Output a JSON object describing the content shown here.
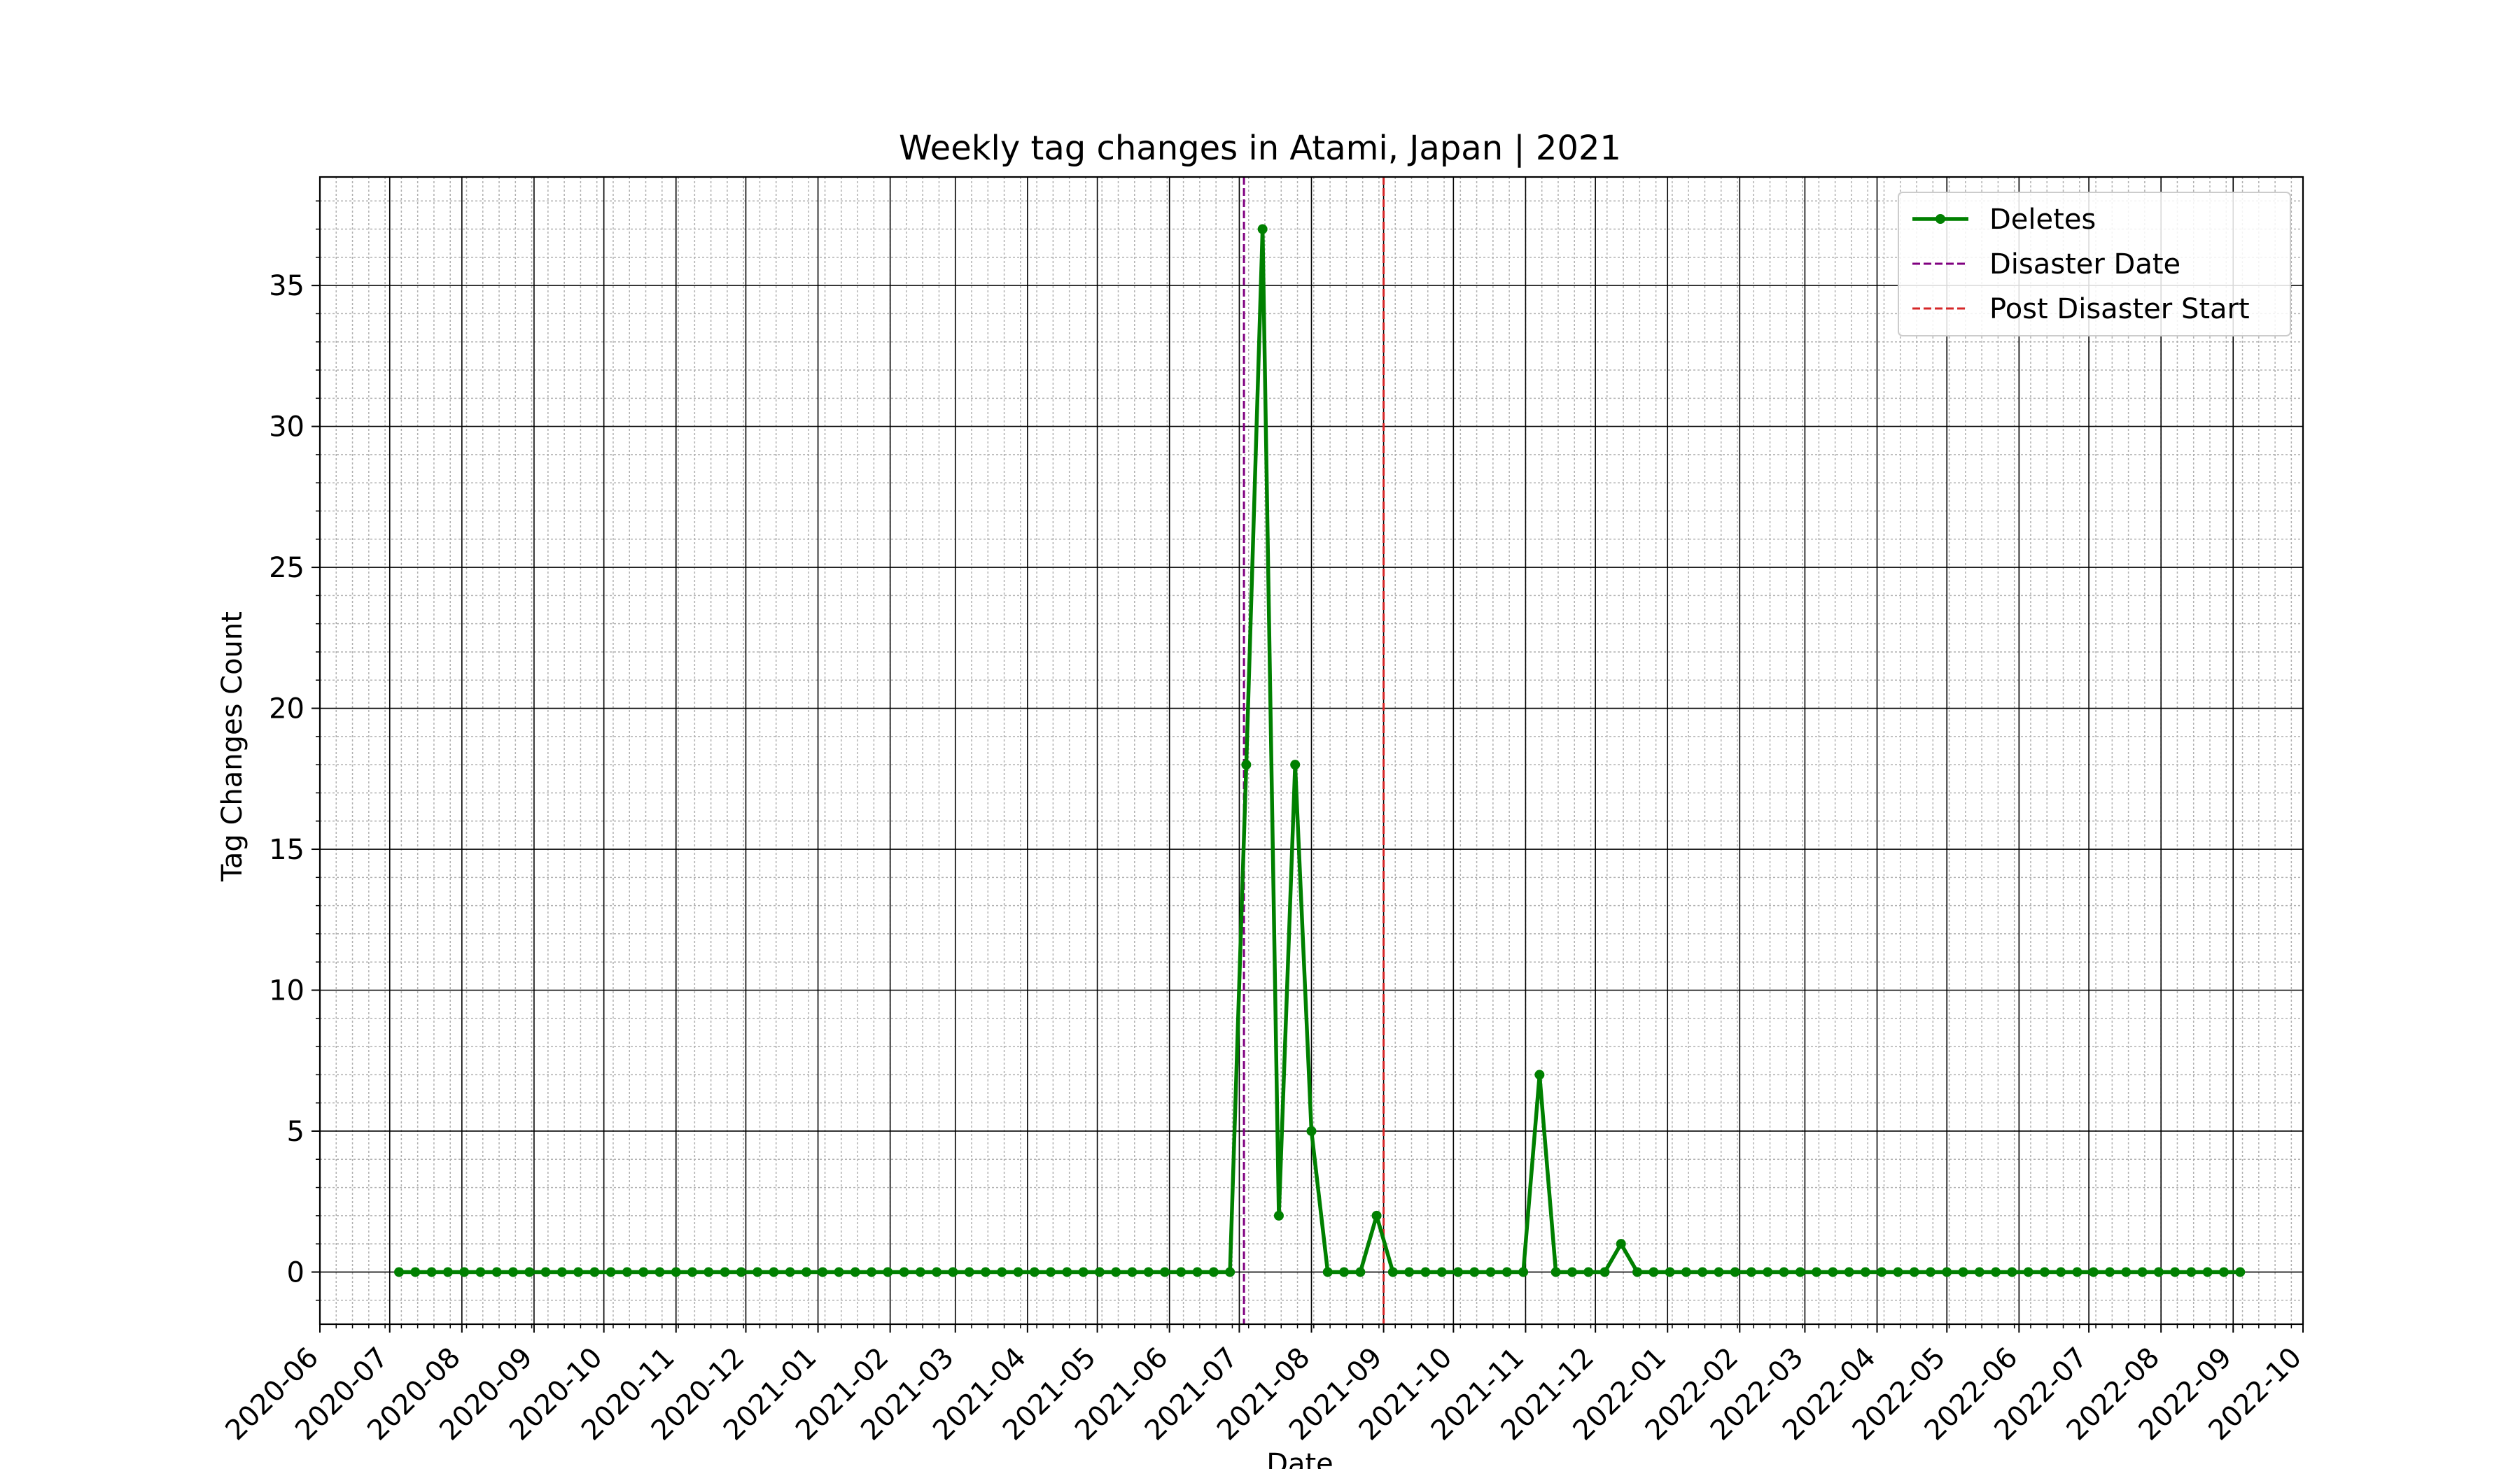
{
  "chart_data": {
    "type": "line",
    "title": "Weekly tag changes in Atami, Japan | 2021",
    "xlabel": "Date",
    "ylabel": "Tag Changes Count",
    "x_ticks": [
      "2020-06",
      "2020-07",
      "2020-08",
      "2020-09",
      "2020-10",
      "2020-11",
      "2020-12",
      "2021-01",
      "2021-02",
      "2021-03",
      "2021-04",
      "2021-05",
      "2021-06",
      "2021-07",
      "2021-08",
      "2021-09",
      "2021-10",
      "2021-11",
      "2021-12",
      "2022-01",
      "2022-02",
      "2022-03",
      "2022-04",
      "2022-05",
      "2022-06",
      "2022-07",
      "2022-08",
      "2022-09",
      "2022-10"
    ],
    "y_ticks": [
      0,
      5,
      10,
      15,
      20,
      25,
      30,
      35
    ],
    "xlim": [
      "2020-06-01",
      "2022-10-01"
    ],
    "ylim": [
      -1.85,
      38.85
    ],
    "grid": true,
    "legend_position": "top-right",
    "series": [
      {
        "name": "Deletes",
        "color": "#008000",
        "marker": "circle",
        "start_date": "2020-07-05",
        "step_days": 7,
        "values": [
          0,
          0,
          0,
          0,
          0,
          0,
          0,
          0,
          0,
          0,
          0,
          0,
          0,
          0,
          0,
          0,
          0,
          0,
          0,
          0,
          0,
          0,
          0,
          0,
          0,
          0,
          0,
          0,
          0,
          0,
          0,
          0,
          0,
          0,
          0,
          0,
          0,
          0,
          0,
          0,
          0,
          0,
          0,
          0,
          0,
          0,
          0,
          0,
          0,
          0,
          0,
          0,
          18,
          37,
          2,
          18,
          5,
          0,
          0,
          0,
          2,
          0,
          0,
          0,
          0,
          0,
          0,
          0,
          0,
          0,
          7,
          0,
          0,
          0,
          0,
          1,
          0,
          0,
          0,
          0,
          0,
          0,
          0,
          0,
          0,
          0,
          0,
          0,
          0,
          0,
          0,
          0,
          0,
          0,
          0,
          0,
          0,
          0,
          0,
          0,
          0,
          0,
          0,
          0,
          0,
          0,
          0,
          0,
          0,
          0,
          0,
          0,
          0,
          0
        ]
      }
    ],
    "vlines": [
      {
        "name": "Disaster Date",
        "date": "2021-07-03",
        "color": "#800080",
        "style": "dashed"
      },
      {
        "name": "Post Disaster Start",
        "date": "2021-09-01",
        "color": "#d62728",
        "style": "dashed"
      }
    ]
  }
}
